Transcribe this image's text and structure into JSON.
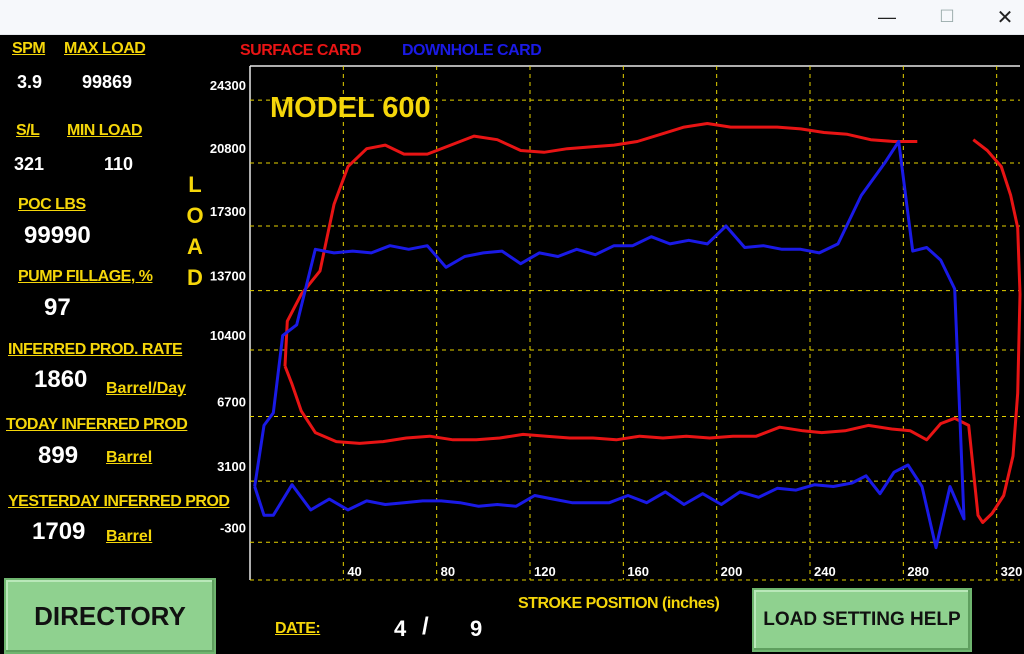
{
  "window": {
    "minimize": "—",
    "maximize": "☐",
    "close": "✕"
  },
  "stats": {
    "spm_label": "SPM",
    "spm": "3.9",
    "max_load_label": "MAX LOAD",
    "max_load": "99869",
    "sl_label": "S/L",
    "sl": "321",
    "min_load_label": "MIN LOAD",
    "min_load": "110",
    "poc_label": "POC LBS",
    "poc": "99990",
    "fillage_label": "PUMP FILLAGE, %",
    "fillage": "97",
    "rate_label": "INFERRED PROD. RATE",
    "rate": "1860",
    "rate_unit": "Barrel/Day",
    "today_label": "TODAY INFERRED PROD",
    "today": "899",
    "today_unit": "Barrel",
    "yesterday_label": "YESTERDAY INFERRED PROD",
    "yesterday": "1709",
    "yesterday_unit": "Barrel"
  },
  "axis_load_letters": [
    "L",
    "O",
    "A",
    "D"
  ],
  "buttons": {
    "directory": "DIRECTORY",
    "help": "LOAD SETTING HELP"
  },
  "date": {
    "label": "DATE:",
    "month": "4",
    "sep": "/",
    "day": "9"
  },
  "colors": {
    "surface": "#e81414",
    "downhole": "#1a1ae6",
    "grid": "#e6d200",
    "label": "#f5d60a"
  },
  "chart_data": {
    "type": "line",
    "title": "MODEL 600",
    "xlabel": "STROKE POSITION (inches)",
    "ylabel": "LOAD",
    "xlim": [
      0,
      330
    ],
    "ylim": [
      -2400,
      26200
    ],
    "x_ticks": [
      40,
      80,
      120,
      160,
      200,
      240,
      280,
      320
    ],
    "y_ticks": [
      -300,
      3100,
      6700,
      10400,
      13700,
      17300,
      20800,
      24300
    ],
    "grid": true,
    "series": [
      {
        "name": "SURFACE CARD",
        "color": "#e81414",
        "segments": [
          [
            [
              15,
              9500
            ],
            [
              16,
              12000
            ],
            [
              22,
              13500
            ],
            [
              30,
              14800
            ],
            [
              36,
              18500
            ],
            [
              42,
              20600
            ],
            [
              50,
              21600
            ],
            [
              58,
              21800
            ],
            [
              66,
              21300
            ],
            [
              76,
              21300
            ],
            [
              86,
              21800
            ],
            [
              96,
              22300
            ],
            [
              106,
              22100
            ],
            [
              116,
              21500
            ],
            [
              126,
              21400
            ],
            [
              136,
              21600
            ],
            [
              146,
              21700
            ],
            [
              156,
              21800
            ],
            [
              166,
              22000
            ],
            [
              176,
              22400
            ],
            [
              186,
              22800
            ],
            [
              196,
              23000
            ],
            [
              206,
              22800
            ],
            [
              216,
              22800
            ],
            [
              226,
              22800
            ],
            [
              236,
              22700
            ],
            [
              246,
              22500
            ],
            [
              256,
              22400
            ],
            [
              266,
              22100
            ],
            [
              276,
              22000
            ],
            [
              286,
              22000
            ]
          ],
          [
            [
              310,
              22100
            ],
            [
              316,
              21500
            ],
            [
              322,
              20600
            ],
            [
              326,
              19000
            ],
            [
              329,
              17200
            ],
            [
              330,
              13500
            ],
            [
              329,
              8000
            ],
            [
              327,
              4500
            ],
            [
              323,
              2300
            ],
            [
              318,
              1300
            ],
            [
              314,
              800
            ],
            [
              312,
              1200
            ],
            [
              308,
              6200
            ],
            [
              302,
              6600
            ],
            [
              296,
              6300
            ],
            [
              290,
              5400
            ],
            [
              283,
              5900
            ],
            [
              275,
              6000
            ],
            [
              265,
              6200
            ],
            [
              255,
              5900
            ],
            [
              245,
              5800
            ],
            [
              237,
              5900
            ],
            [
              227,
              6100
            ],
            [
              217,
              5600
            ],
            [
              207,
              5600
            ],
            [
              197,
              5500
            ],
            [
              187,
              5600
            ],
            [
              177,
              5500
            ],
            [
              167,
              5600
            ],
            [
              157,
              5400
            ],
            [
              147,
              5500
            ],
            [
              137,
              5500
            ],
            [
              127,
              5600
            ],
            [
              117,
              5700
            ],
            [
              107,
              5500
            ],
            [
              97,
              5400
            ],
            [
              87,
              5400
            ],
            [
              77,
              5600
            ],
            [
              67,
              5500
            ],
            [
              57,
              5300
            ],
            [
              47,
              5200
            ],
            [
              37,
              5300
            ],
            [
              28,
              5800
            ],
            [
              22,
              7000
            ],
            [
              18,
              8500
            ],
            [
              15,
              9500
            ]
          ]
        ]
      },
      {
        "name": "DOWNHOLE CARD",
        "color": "#1a1ae6",
        "segments": [
          [
            [
              2,
              2800
            ],
            [
              6,
              6200
            ],
            [
              10,
              6900
            ],
            [
              14,
              11200
            ],
            [
              20,
              11800
            ],
            [
              28,
              16000
            ],
            [
              36,
              15800
            ],
            [
              44,
              15900
            ],
            [
              52,
              15800
            ],
            [
              60,
              16200
            ],
            [
              68,
              16000
            ],
            [
              76,
              16200
            ],
            [
              84,
              15000
            ],
            [
              92,
              15600
            ],
            [
              100,
              15800
            ],
            [
              108,
              15900
            ],
            [
              116,
              15200
            ],
            [
              124,
              15800
            ],
            [
              132,
              15600
            ],
            [
              140,
              16000
            ],
            [
              148,
              15700
            ],
            [
              156,
              16200
            ],
            [
              164,
              16200
            ],
            [
              172,
              16700
            ],
            [
              180,
              16300
            ],
            [
              188,
              16500
            ],
            [
              196,
              16300
            ],
            [
              204,
              17300
            ],
            [
              212,
              16100
            ],
            [
              220,
              16200
            ],
            [
              228,
              16000
            ],
            [
              236,
              16000
            ],
            [
              244,
              15800
            ],
            [
              252,
              16300
            ],
            [
              262,
              19000
            ],
            [
              272,
              20800
            ],
            [
              278,
              22000
            ],
            [
              284,
              15900
            ],
            [
              290,
              16100
            ],
            [
              296,
              15400
            ],
            [
              302,
              13800
            ],
            [
              306,
              1000
            ],
            [
              300,
              2800
            ],
            [
              294,
              -600
            ],
            [
              288,
              2800
            ],
            [
              282,
              4000
            ],
            [
              276,
              3600
            ],
            [
              270,
              2400
            ],
            [
              264,
              3400
            ],
            [
              258,
              3000
            ],
            [
              250,
              2800
            ],
            [
              242,
              2900
            ],
            [
              234,
              2600
            ],
            [
              226,
              2700
            ],
            [
              218,
              2200
            ],
            [
              210,
              2500
            ],
            [
              202,
              1800
            ],
            [
              194,
              2400
            ],
            [
              186,
              1800
            ],
            [
              178,
              2500
            ],
            [
              170,
              1900
            ],
            [
              162,
              2300
            ],
            [
              154,
              1900
            ],
            [
              146,
              1900
            ],
            [
              138,
              1900
            ],
            [
              130,
              2100
            ],
            [
              122,
              2300
            ],
            [
              114,
              1700
            ],
            [
              106,
              1800
            ],
            [
              98,
              1700
            ],
            [
              90,
              1900
            ],
            [
              82,
              2000
            ],
            [
              74,
              2000
            ],
            [
              66,
              1900
            ],
            [
              58,
              1800
            ],
            [
              50,
              2000
            ],
            [
              42,
              1500
            ],
            [
              34,
              2100
            ],
            [
              26,
              1500
            ],
            [
              18,
              2900
            ],
            [
              10,
              1200
            ],
            [
              6,
              1200
            ],
            [
              2,
              2800
            ]
          ]
        ]
      }
    ]
  }
}
